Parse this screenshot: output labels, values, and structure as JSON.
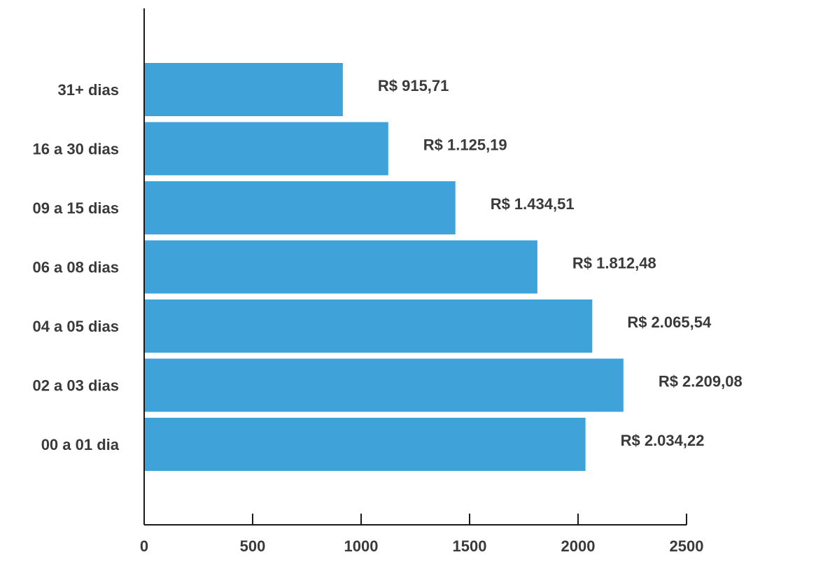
{
  "chart_data": {
    "type": "bar",
    "orientation": "horizontal",
    "title": "",
    "xlabel": "",
    "ylabel": "",
    "categories": [
      "00 a 01 dia",
      "02 a 03 dias",
      "04 a 05 dias",
      "06 a 08 dias",
      "09 a 15 dias",
      "16 a 30 dias",
      "31+ dias"
    ],
    "values": [
      2034.22,
      2209.08,
      2065.54,
      1812.48,
      1434.51,
      1125.19,
      915.71
    ],
    "value_labels": [
      "R$ 2.034,22",
      "R$ 2.209,08",
      "R$ 2.065,54",
      "R$ 1.812,48",
      "R$ 1.434,51",
      "R$ 1.125,19",
      "R$ 915,71"
    ],
    "xlim": [
      0,
      2500
    ],
    "xticks": [
      0,
      500,
      1000,
      1500,
      2000,
      2500
    ],
    "xtick_labels": [
      "0",
      "500",
      "1000",
      "1500",
      "2000",
      "2500"
    ],
    "grid": false,
    "bar_color": "#3fa2d8"
  }
}
